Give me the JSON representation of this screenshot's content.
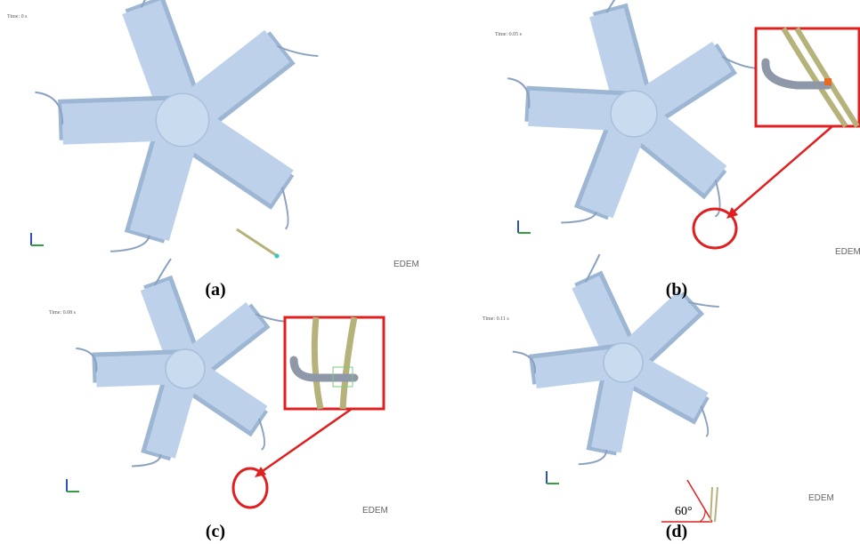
{
  "panels": [
    {
      "label": "(a)",
      "time": "Time: 0 s",
      "logo": "EDEM"
    },
    {
      "label": "(b)",
      "time": "Time: 0.05 s",
      "logo": "EDEM"
    },
    {
      "label": "(c)",
      "time": "Time: 0.08 s",
      "logo": "EDEM"
    },
    {
      "label": "(d)",
      "time": "Time: 0.11 s",
      "logo": "EDEM",
      "angle": "60°"
    }
  ]
}
